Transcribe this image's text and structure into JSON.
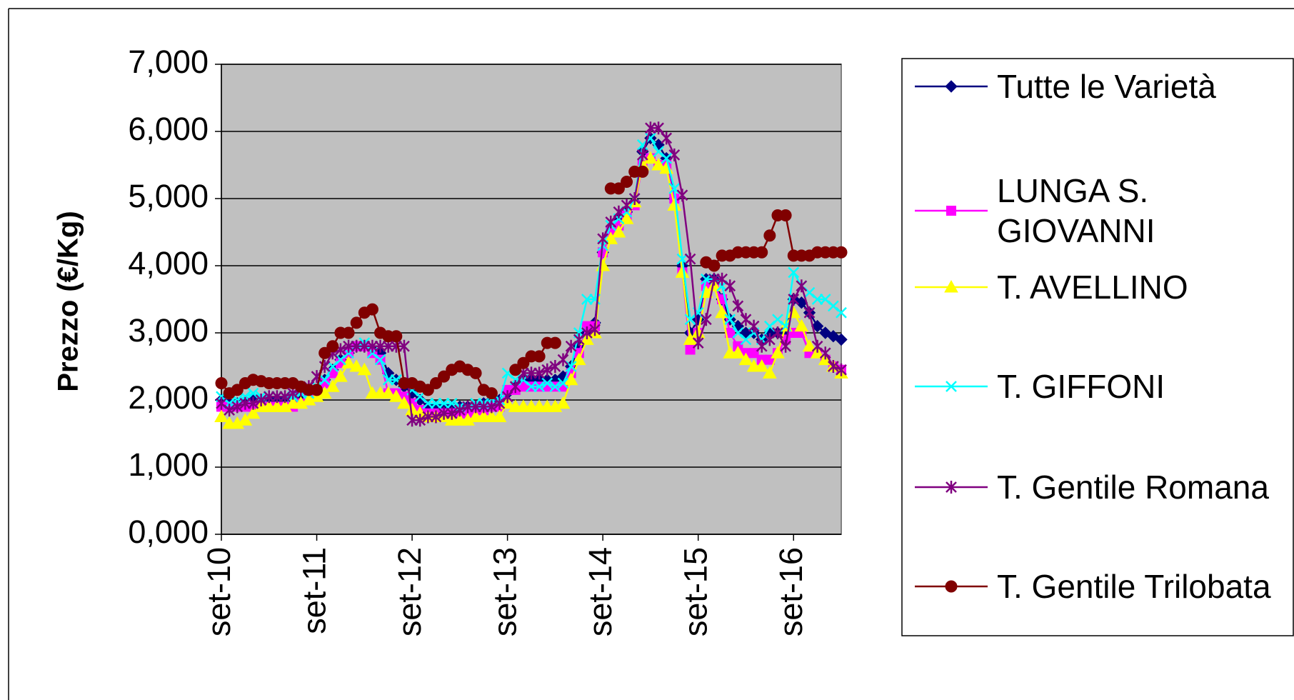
{
  "chart_data": {
    "type": "line",
    "y_label": "Prezzo (€/Kg)",
    "categories": [
      "set-10",
      null,
      null,
      null,
      null,
      null,
      null,
      null,
      null,
      null,
      null,
      null,
      "set-11",
      null,
      null,
      null,
      null,
      null,
      null,
      null,
      null,
      null,
      null,
      null,
      "set-12",
      null,
      null,
      null,
      null,
      null,
      null,
      null,
      null,
      null,
      null,
      null,
      "set-13",
      null,
      null,
      null,
      null,
      null,
      null,
      null,
      null,
      null,
      null,
      null,
      "set-14",
      null,
      null,
      null,
      null,
      null,
      null,
      null,
      null,
      null,
      null,
      null,
      "set-15",
      null,
      null,
      null,
      null,
      null,
      null,
      null,
      null,
      null,
      null,
      null,
      "set-16",
      null,
      null,
      null,
      null,
      null,
      null
    ],
    "ylim": [
      0,
      7000
    ],
    "yticks": [
      {
        "value": 0,
        "label": "0,000"
      },
      {
        "value": 1000,
        "label": "1,000"
      },
      {
        "value": 2000,
        "label": "2,000"
      },
      {
        "value": 3000,
        "label": "3,000"
      },
      {
        "value": 4000,
        "label": "4,000"
      },
      {
        "value": 5000,
        "label": "5,000"
      },
      {
        "value": 6000,
        "label": "6,000"
      },
      {
        "value": 7000,
        "label": "7,000"
      }
    ],
    "grid": true,
    "legend": "right",
    "series": [
      {
        "name": "Tutte le Varietà",
        "color": "#000080",
        "marker": "diamond",
        "values": [
          2000,
          1950,
          1950,
          1980,
          2000,
          2000,
          2000,
          2000,
          2000,
          2000,
          2000,
          2050,
          2150,
          2300,
          2450,
          2600,
          2700,
          2800,
          2800,
          2750,
          2700,
          2400,
          2300,
          2200,
          2100,
          2000,
          1900,
          1900,
          1900,
          1900,
          1900,
          1900,
          1900,
          1950,
          2000,
          2000,
          2100,
          2200,
          2300,
          2300,
          2300,
          2300,
          2300,
          2350,
          2500,
          2800,
          3000,
          3150,
          4200,
          4500,
          4700,
          4800,
          4950,
          5700,
          5900,
          5800,
          5600,
          5000,
          4000,
          3000,
          3200,
          3800,
          3800,
          3500,
          3200,
          3100,
          3000,
          3000,
          2900,
          3000,
          3000,
          3000,
          3500,
          3450,
          3300,
          3100,
          3000,
          2950,
          2900
        ]
      },
      {
        "name": "LUNGA S. GIOVANNI",
        "color": "#ff00ff",
        "marker": "square",
        "values": [
          1900,
          1900,
          1900,
          1900,
          1900,
          1900,
          1900,
          1900,
          1900,
          1900,
          1950,
          2000,
          2100,
          2250,
          2400,
          2550,
          2700,
          2800,
          2800,
          2700,
          2600,
          2100,
          2100,
          2050,
          1950,
          1850,
          1800,
          1800,
          1800,
          1800,
          1800,
          1800,
          1850,
          1850,
          1900,
          1900,
          2150,
          2150,
          2200,
          2200,
          2200,
          2200,
          2200,
          2200,
          2400,
          2700,
          3100,
          3100,
          4200,
          4500,
          4600,
          4750,
          4900,
          5500,
          5600,
          5500,
          5500,
          5000,
          3900,
          2750,
          3000,
          3700,
          3700,
          3500,
          3000,
          2800,
          2700,
          2700,
          2600,
          2600,
          2700,
          2900,
          3000,
          3000,
          2700,
          2700,
          2600,
          2500,
          2450
        ]
      },
      {
        "name": "T. AVELLINO",
        "color": "#ffff00",
        "marker": "triangle",
        "values": [
          1750,
          1650,
          1650,
          1700,
          1800,
          1900,
          1900,
          1900,
          1900,
          1950,
          1950,
          2000,
          2050,
          2100,
          2200,
          2350,
          2550,
          2500,
          2450,
          2100,
          2100,
          2100,
          2050,
          1950,
          1850,
          1800,
          1750,
          1750,
          1750,
          1700,
          1700,
          1700,
          1750,
          1750,
          1750,
          1750,
          1950,
          1900,
          1900,
          1900,
          1900,
          1900,
          1900,
          1950,
          2300,
          2600,
          2900,
          3000,
          4000,
          4400,
          4500,
          4700,
          4950,
          5500,
          5600,
          5500,
          5450,
          4900,
          3900,
          2900,
          3000,
          3600,
          3700,
          3300,
          2700,
          2700,
          2600,
          2500,
          2500,
          2400,
          2700,
          3100,
          3300,
          3100,
          2800,
          2700,
          2600,
          2500,
          2400
        ]
      },
      {
        "name": "T. GIFFONI",
        "color": "#00ffff",
        "marker": "x",
        "values": [
          2050,
          1950,
          2000,
          2050,
          2100,
          2050,
          2050,
          2050,
          2050,
          2050,
          2100,
          2100,
          2200,
          2300,
          2500,
          2600,
          2700,
          2800,
          2850,
          2700,
          2600,
          2300,
          2300,
          2250,
          2150,
          2050,
          1950,
          1950,
          1950,
          1950,
          1900,
          1900,
          1950,
          1950,
          2000,
          2000,
          2400,
          2300,
          2300,
          2200,
          2200,
          2250,
          2200,
          2250,
          2500,
          3000,
          3500,
          3500,
          4300,
          4600,
          4700,
          4800,
          5000,
          5800,
          5900,
          5700,
          5600,
          5150,
          4100,
          3200,
          3300,
          3800,
          3800,
          3700,
          3200,
          3000,
          2900,
          3000,
          2900,
          3100,
          3200,
          3100,
          3900,
          3700,
          3600,
          3500,
          3500,
          3400,
          3300
        ]
      },
      {
        "name": "T. Gentile Romana",
        "color": "#800080",
        "marker": "star",
        "values": [
          1950,
          1850,
          1900,
          1950,
          1950,
          2000,
          2050,
          2050,
          2050,
          2100,
          2150,
          2200,
          2350,
          2500,
          2700,
          2750,
          2800,
          2800,
          2800,
          2800,
          2800,
          2800,
          2800,
          2800,
          1700,
          1700,
          1750,
          1750,
          1800,
          1800,
          1850,
          1900,
          1900,
          1900,
          1900,
          1950,
          2050,
          2200,
          2400,
          2400,
          2400,
          2450,
          2500,
          2600,
          2800,
          2900,
          3000,
          3050,
          4400,
          4650,
          4800,
          4900,
          5000,
          5650,
          6050,
          6050,
          5900,
          5650,
          5050,
          4100,
          2850,
          3200,
          3800,
          3800,
          3700,
          3400,
          3200,
          3100,
          2800,
          2900,
          3000,
          2800,
          3500,
          3700,
          3300,
          2800,
          2700,
          2500,
          2450
        ]
      },
      {
        "name": "T. Gentile Trilobata",
        "color": "#800000",
        "marker": "circle",
        "values": [
          2250,
          2100,
          2150,
          2250,
          2300,
          2280,
          2250,
          2250,
          2250,
          2250,
          2200,
          2150,
          2150,
          2700,
          2800,
          3000,
          3000,
          3150,
          3300,
          3350,
          3000,
          2950,
          2950,
          2250,
          2250,
          2200,
          2150,
          2250,
          2350,
          2450,
          2500,
          2450,
          2400,
          2150,
          2100,
          null,
          null,
          2450,
          2550,
          2650,
          2650,
          2850,
          2850,
          null,
          null,
          null,
          null,
          null,
          null,
          5150,
          5150,
          5250,
          5400,
          5400,
          null,
          null,
          null,
          null,
          null,
          null,
          null,
          4050,
          4000,
          4150,
          4150,
          4200,
          4200,
          4200,
          4200,
          4450,
          4750,
          4750,
          4150,
          4150,
          4150,
          4200,
          4200,
          4200,
          4200
        ]
      }
    ]
  }
}
